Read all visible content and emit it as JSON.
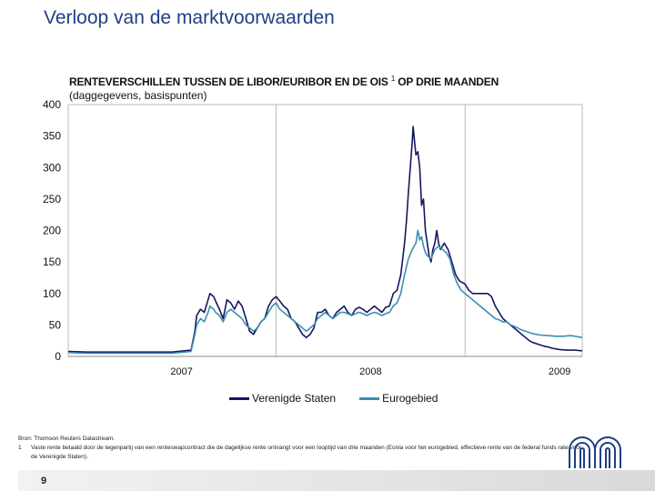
{
  "page": {
    "title": "Verloop van de marktvoorwaarden",
    "page_number": "9"
  },
  "chart_data": {
    "type": "line",
    "title": "RENTEVERSCHILLEN TUSSEN DE LIBOR/EURIBOR EN DE OIS",
    "title_footnote_mark": "1",
    "title_suffix": "OP DRIE MAANDEN",
    "subtitle": "(daggegevens, basispunten)",
    "xlabel": "",
    "ylabel": "",
    "ylim": [
      0,
      400
    ],
    "yticks": [
      0,
      50,
      100,
      150,
      200,
      250,
      300,
      350,
      400
    ],
    "xlim": [
      2006.9,
      2009.62
    ],
    "xticks": [
      {
        "value": 2007.5,
        "label": "2007"
      },
      {
        "value": 2008.5,
        "label": "2008"
      },
      {
        "value": 2009.5,
        "label": "2009"
      }
    ],
    "year_dividers": [
      2008.0,
      2009.0
    ],
    "grid": false,
    "legend": "bottom-center",
    "series": [
      {
        "name": "Verenigde Staten",
        "color": "#14185e",
        "points": [
          [
            2006.9,
            8
          ],
          [
            2007.0,
            7
          ],
          [
            2007.1,
            7
          ],
          [
            2007.2,
            7
          ],
          [
            2007.3,
            7
          ],
          [
            2007.45,
            7
          ],
          [
            2007.55,
            10
          ],
          [
            2007.57,
            40
          ],
          [
            2007.58,
            65
          ],
          [
            2007.6,
            75
          ],
          [
            2007.62,
            70
          ],
          [
            2007.64,
            90
          ],
          [
            2007.65,
            100
          ],
          [
            2007.67,
            95
          ],
          [
            2007.68,
            88
          ],
          [
            2007.7,
            75
          ],
          [
            2007.72,
            60
          ],
          [
            2007.74,
            90
          ],
          [
            2007.76,
            85
          ],
          [
            2007.78,
            75
          ],
          [
            2007.8,
            88
          ],
          [
            2007.82,
            80
          ],
          [
            2007.84,
            60
          ],
          [
            2007.86,
            40
          ],
          [
            2007.88,
            35
          ],
          [
            2007.9,
            45
          ],
          [
            2007.92,
            55
          ],
          [
            2007.94,
            60
          ],
          [
            2007.96,
            80
          ],
          [
            2007.98,
            90
          ],
          [
            2008.0,
            95
          ],
          [
            2008.02,
            88
          ],
          [
            2008.04,
            80
          ],
          [
            2008.06,
            75
          ],
          [
            2008.08,
            60
          ],
          [
            2008.1,
            55
          ],
          [
            2008.12,
            45
          ],
          [
            2008.14,
            35
          ],
          [
            2008.16,
            30
          ],
          [
            2008.18,
            35
          ],
          [
            2008.2,
            45
          ],
          [
            2008.22,
            70
          ],
          [
            2008.24,
            70
          ],
          [
            2008.26,
            75
          ],
          [
            2008.28,
            65
          ],
          [
            2008.3,
            60
          ],
          [
            2008.32,
            70
          ],
          [
            2008.34,
            75
          ],
          [
            2008.36,
            80
          ],
          [
            2008.38,
            70
          ],
          [
            2008.4,
            65
          ],
          [
            2008.42,
            75
          ],
          [
            2008.44,
            78
          ],
          [
            2008.46,
            75
          ],
          [
            2008.48,
            70
          ],
          [
            2008.5,
            75
          ],
          [
            2008.52,
            80
          ],
          [
            2008.54,
            75
          ],
          [
            2008.56,
            70
          ],
          [
            2008.58,
            78
          ],
          [
            2008.6,
            80
          ],
          [
            2008.62,
            100
          ],
          [
            2008.64,
            105
          ],
          [
            2008.66,
            130
          ],
          [
            2008.68,
            180
          ],
          [
            2008.69,
            215
          ],
          [
            2008.7,
            260
          ],
          [
            2008.71,
            300
          ],
          [
            2008.72,
            340
          ],
          [
            2008.725,
            365
          ],
          [
            2008.73,
            350
          ],
          [
            2008.74,
            320
          ],
          [
            2008.75,
            325
          ],
          [
            2008.76,
            300
          ],
          [
            2008.77,
            240
          ],
          [
            2008.78,
            250
          ],
          [
            2008.79,
            200
          ],
          [
            2008.8,
            180
          ],
          [
            2008.81,
            160
          ],
          [
            2008.82,
            150
          ],
          [
            2008.83,
            170
          ],
          [
            2008.84,
            180
          ],
          [
            2008.85,
            200
          ],
          [
            2008.86,
            180
          ],
          [
            2008.87,
            170
          ],
          [
            2008.88,
            175
          ],
          [
            2008.89,
            180
          ],
          [
            2008.9,
            175
          ],
          [
            2008.91,
            170
          ],
          [
            2008.92,
            160
          ],
          [
            2008.93,
            150
          ],
          [
            2008.95,
            130
          ],
          [
            2008.97,
            120
          ],
          [
            2009.0,
            115
          ],
          [
            2009.02,
            105
          ],
          [
            2009.04,
            100
          ],
          [
            2009.06,
            100
          ],
          [
            2009.08,
            100
          ],
          [
            2009.1,
            100
          ],
          [
            2009.12,
            100
          ],
          [
            2009.14,
            95
          ],
          [
            2009.16,
            80
          ],
          [
            2009.18,
            70
          ],
          [
            2009.2,
            60
          ],
          [
            2009.22,
            55
          ],
          [
            2009.24,
            50
          ],
          [
            2009.26,
            45
          ],
          [
            2009.28,
            40
          ],
          [
            2009.3,
            35
          ],
          [
            2009.32,
            30
          ],
          [
            2009.34,
            25
          ],
          [
            2009.36,
            22
          ],
          [
            2009.38,
            20
          ],
          [
            2009.4,
            18
          ],
          [
            2009.42,
            16
          ],
          [
            2009.44,
            15
          ],
          [
            2009.46,
            13
          ],
          [
            2009.48,
            12
          ],
          [
            2009.5,
            11
          ],
          [
            2009.54,
            10
          ],
          [
            2009.58,
            10
          ],
          [
            2009.62,
            9
          ]
        ]
      },
      {
        "name": "Eurogebied",
        "color": "#3a8fb0",
        "points": [
          [
            2006.9,
            6
          ],
          [
            2007.0,
            5
          ],
          [
            2007.1,
            5
          ],
          [
            2007.2,
            5
          ],
          [
            2007.3,
            5
          ],
          [
            2007.45,
            5
          ],
          [
            2007.55,
            8
          ],
          [
            2007.57,
            35
          ],
          [
            2007.58,
            50
          ],
          [
            2007.6,
            60
          ],
          [
            2007.62,
            55
          ],
          [
            2007.64,
            70
          ],
          [
            2007.65,
            80
          ],
          [
            2007.67,
            75
          ],
          [
            2007.68,
            70
          ],
          [
            2007.7,
            65
          ],
          [
            2007.72,
            55
          ],
          [
            2007.74,
            70
          ],
          [
            2007.76,
            75
          ],
          [
            2007.78,
            70
          ],
          [
            2007.8,
            65
          ],
          [
            2007.82,
            60
          ],
          [
            2007.84,
            50
          ],
          [
            2007.86,
            45
          ],
          [
            2007.88,
            40
          ],
          [
            2007.9,
            45
          ],
          [
            2007.92,
            55
          ],
          [
            2007.94,
            60
          ],
          [
            2007.96,
            70
          ],
          [
            2007.98,
            80
          ],
          [
            2008.0,
            85
          ],
          [
            2008.02,
            75
          ],
          [
            2008.04,
            70
          ],
          [
            2008.06,
            65
          ],
          [
            2008.08,
            60
          ],
          [
            2008.1,
            55
          ],
          [
            2008.12,
            50
          ],
          [
            2008.14,
            45
          ],
          [
            2008.16,
            40
          ],
          [
            2008.18,
            45
          ],
          [
            2008.2,
            50
          ],
          [
            2008.22,
            60
          ],
          [
            2008.24,
            65
          ],
          [
            2008.26,
            70
          ],
          [
            2008.28,
            65
          ],
          [
            2008.3,
            60
          ],
          [
            2008.32,
            65
          ],
          [
            2008.34,
            70
          ],
          [
            2008.36,
            70
          ],
          [
            2008.38,
            68
          ],
          [
            2008.4,
            65
          ],
          [
            2008.42,
            68
          ],
          [
            2008.44,
            70
          ],
          [
            2008.46,
            68
          ],
          [
            2008.48,
            65
          ],
          [
            2008.5,
            68
          ],
          [
            2008.52,
            70
          ],
          [
            2008.54,
            68
          ],
          [
            2008.56,
            65
          ],
          [
            2008.58,
            68
          ],
          [
            2008.6,
            70
          ],
          [
            2008.62,
            80
          ],
          [
            2008.64,
            85
          ],
          [
            2008.66,
            100
          ],
          [
            2008.68,
            130
          ],
          [
            2008.7,
            155
          ],
          [
            2008.72,
            170
          ],
          [
            2008.74,
            180
          ],
          [
            2008.75,
            200
          ],
          [
            2008.76,
            185
          ],
          [
            2008.77,
            190
          ],
          [
            2008.78,
            175
          ],
          [
            2008.79,
            165
          ],
          [
            2008.8,
            160
          ],
          [
            2008.82,
            155
          ],
          [
            2008.84,
            170
          ],
          [
            2008.86,
            175
          ],
          [
            2008.88,
            170
          ],
          [
            2008.9,
            165
          ],
          [
            2008.92,
            155
          ],
          [
            2008.94,
            130
          ],
          [
            2008.96,
            115
          ],
          [
            2008.98,
            105
          ],
          [
            2009.0,
            100
          ],
          [
            2009.02,
            95
          ],
          [
            2009.04,
            90
          ],
          [
            2009.06,
            85
          ],
          [
            2009.08,
            80
          ],
          [
            2009.1,
            75
          ],
          [
            2009.12,
            70
          ],
          [
            2009.14,
            65
          ],
          [
            2009.16,
            60
          ],
          [
            2009.18,
            58
          ],
          [
            2009.2,
            55
          ],
          [
            2009.22,
            55
          ],
          [
            2009.24,
            50
          ],
          [
            2009.26,
            48
          ],
          [
            2009.28,
            45
          ],
          [
            2009.3,
            42
          ],
          [
            2009.32,
            40
          ],
          [
            2009.34,
            38
          ],
          [
            2009.36,
            36
          ],
          [
            2009.38,
            35
          ],
          [
            2009.4,
            34
          ],
          [
            2009.44,
            33
          ],
          [
            2009.48,
            32
          ],
          [
            2009.52,
            32
          ],
          [
            2009.56,
            33
          ],
          [
            2009.6,
            31
          ],
          [
            2009.62,
            30
          ]
        ]
      }
    ]
  },
  "footer": {
    "source": "Bron: Thomson Reuters Datastream.",
    "footnote_mark": "1",
    "footnote": "Vaste rente betaald door de tegenpartij van een renteswapcontract die de dagelijkse rente ontvangt voor een looptijd van drie maanden (Eonia voor het eurogebied, effectieve rente van de federal funds rate voor de Verenigde Staten)."
  }
}
